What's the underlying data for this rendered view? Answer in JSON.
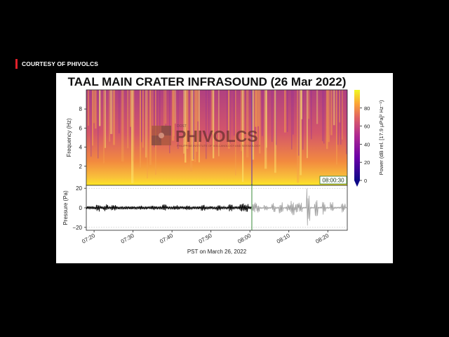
{
  "banner": {
    "courtesy_label": "COURTESY OF PHIVOLCS"
  },
  "watermark": {
    "text": "PHIVOLCS",
    "small_text": "DOST",
    "sub_text": "PHILIPPINE INSTITUTE OF VOLCANOLOGY AND SEISMOLOGY"
  },
  "colors": {
    "accent": "#e0202a",
    "marker": "#2e7d32"
  },
  "chart_data": [
    {
      "type": "heatmap",
      "title": "TAAL MAIN CRATER INFRASOUND (26 Mar 2022)",
      "ylabel": "Frequency (Hz)",
      "yticks": [
        "2",
        "4",
        "6",
        "8"
      ],
      "ylim": [
        0,
        10
      ],
      "colorbar": {
        "label": "Power (dB rel. [17.9 µPa]² Hz⁻¹)",
        "ticks": [
          "0",
          "20",
          "40",
          "60",
          "80"
        ],
        "range": [
          0,
          100
        ],
        "colormap": "plasma",
        "extend": "min"
      },
      "annotation": "08:00:30"
    },
    {
      "type": "line",
      "ylabel": "Pressure (Pa)",
      "yticks": [
        "20",
        "0",
        "−20"
      ],
      "ylim": [
        -23,
        23
      ],
      "xlabel": "PST on March 26, 2022",
      "xticks": [
        "07:20",
        "07:30",
        "07:40",
        "07:50",
        "08:00",
        "08:10",
        "08:20"
      ],
      "xlim": [
        "07:18",
        "08:25"
      ],
      "marker_time": "08:00:30",
      "bursts_before_marker": [
        {
          "t": "07:21",
          "amp": 3.2
        },
        {
          "t": "07:23",
          "amp": 3.0
        },
        {
          "t": "07:25",
          "amp": 2.6
        },
        {
          "t": "07:32",
          "amp": 2.2
        },
        {
          "t": "07:35",
          "amp": 2.0
        },
        {
          "t": "07:38",
          "amp": 3.1
        },
        {
          "t": "07:41",
          "amp": 2.3
        },
        {
          "t": "07:44",
          "amp": 2.1
        },
        {
          "t": "07:48",
          "amp": 2.6
        },
        {
          "t": "07:52",
          "amp": 2.8
        },
        {
          "t": "07:55",
          "amp": 3.0
        },
        {
          "t": "07:58",
          "amp": 4.0
        },
        {
          "t": "07:59",
          "amp": 3.5
        }
      ],
      "bursts_after_marker": [
        {
          "t": "08:01",
          "amp": 6
        },
        {
          "t": "08:02",
          "amp": 5
        },
        {
          "t": "08:04",
          "amp": 4
        },
        {
          "t": "08:06",
          "amp": 5
        },
        {
          "t": "08:08",
          "amp": 6
        },
        {
          "t": "08:10",
          "amp": 5
        },
        {
          "t": "08:11",
          "amp": 8
        },
        {
          "t": "08:12",
          "amp": 5
        },
        {
          "t": "08:13",
          "amp": 6
        },
        {
          "t": "08:15",
          "amp": 22
        },
        {
          "t": "08:17",
          "amp": 9
        },
        {
          "t": "08:19",
          "amp": 8
        },
        {
          "t": "08:21",
          "amp": 6
        },
        {
          "t": "08:24",
          "amp": 5
        }
      ]
    }
  ]
}
